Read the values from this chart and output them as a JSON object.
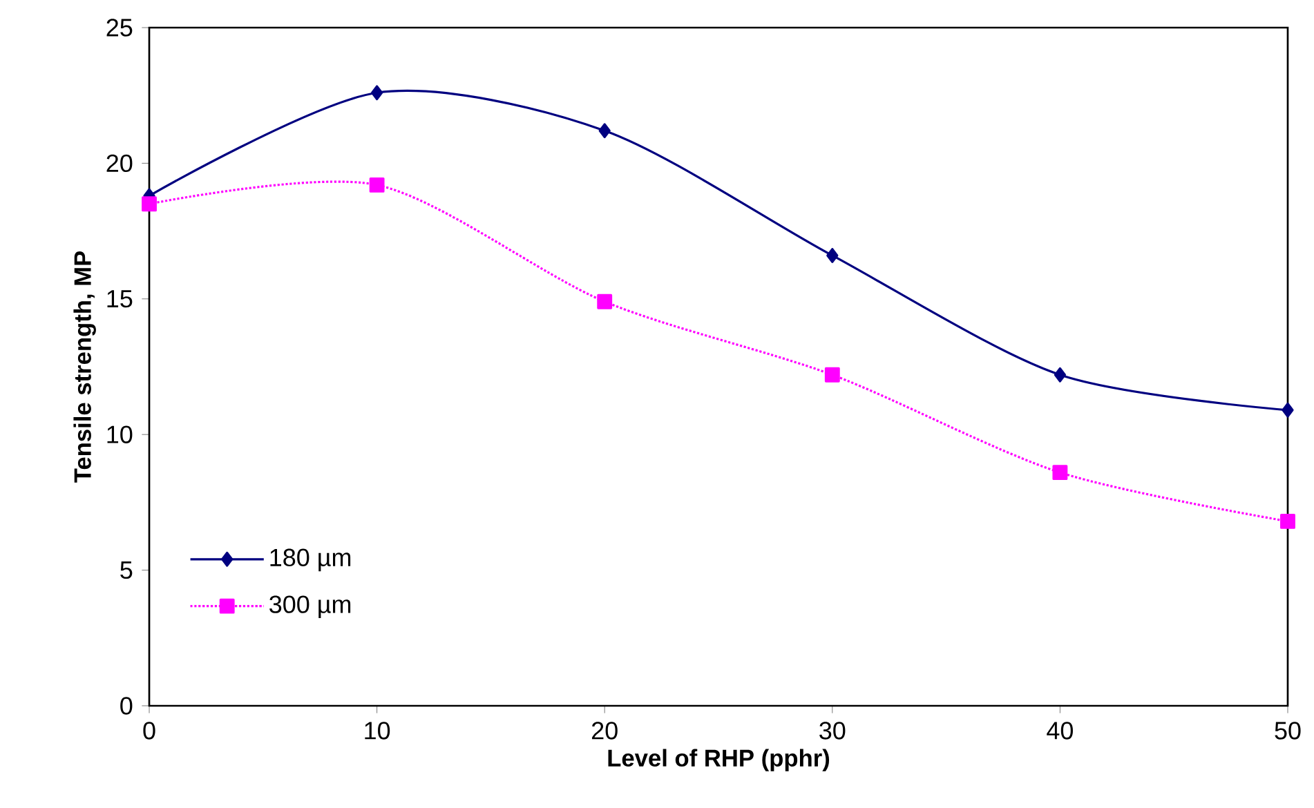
{
  "chart_data": {
    "type": "line",
    "xlabel": "Level of RHP (pphr)",
    "ylabel": "Tensile strength, MP",
    "x": [
      0,
      10,
      20,
      30,
      40,
      50
    ],
    "series": [
      {
        "name": "180 µm",
        "color": "#000080",
        "marker": "diamond",
        "line_style": "solid",
        "values": [
          18.8,
          22.6,
          21.2,
          16.6,
          12.2,
          10.9
        ]
      },
      {
        "name": "300 µm",
        "color": "#ff00ff",
        "marker": "square",
        "line_style": "dotted",
        "values": [
          18.5,
          19.2,
          14.9,
          12.2,
          8.6,
          6.8
        ]
      }
    ],
    "xlim": [
      0,
      50
    ],
    "ylim": [
      0,
      25
    ],
    "xticks": [
      0,
      10,
      20,
      30,
      40,
      50
    ],
    "yticks": [
      0,
      5,
      10,
      15,
      20,
      25
    ],
    "grid": false,
    "legend": "bottom left"
  }
}
